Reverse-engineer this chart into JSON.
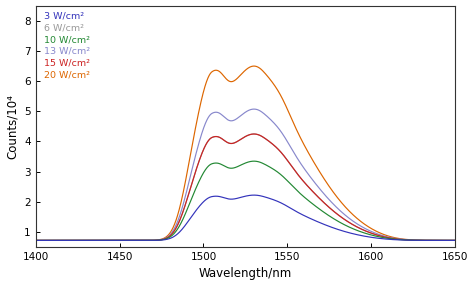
{
  "xlabel": "Wavelength/nm",
  "ylabel": "Counts/10⁴",
  "xlim": [
    1400,
    1650
  ],
  "ylim": [
    0.5,
    8.5
  ],
  "yticks": [
    1.0,
    2.0,
    3.0,
    4.0,
    5.0,
    6.0,
    7.0,
    8.0
  ],
  "xticks": [
    1400,
    1450,
    1500,
    1550,
    1600,
    1650
  ],
  "background_color": "#ffffff",
  "series": [
    {
      "label": "3 W/cm²",
      "color": "#3333bb",
      "scale": 1.0
    },
    {
      "label": "6 W/cm²",
      "color": "#999999",
      "scale": 2.35
    },
    {
      "label": "10 W/cm²",
      "color": "#228833",
      "scale": 1.75
    },
    {
      "label": "13 W/cm²",
      "color": "#8888cc",
      "scale": 2.9
    },
    {
      "label": "15 W/cm²",
      "color": "#cc2222",
      "scale": 2.35
    },
    {
      "label": "20 W/cm²",
      "color": "#dd6600",
      "scale": 3.85
    }
  ]
}
